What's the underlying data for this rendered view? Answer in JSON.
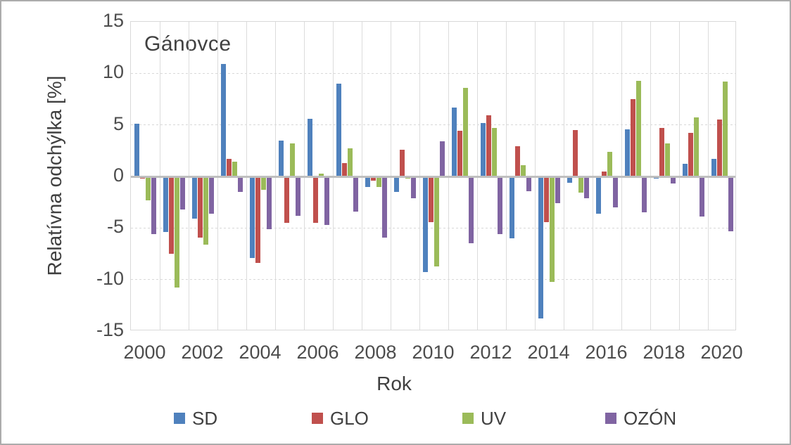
{
  "frame": {
    "background_color": "#ffffff",
    "border_color": "#acacac",
    "text_color": "#404040",
    "gridline_color": "#d9d9d9",
    "zero_axis_color": "#bfbfbf"
  },
  "chart_data": {
    "type": "bar",
    "title": "Gánovce",
    "xlabel": "Rok",
    "ylabel": "Relatívna odchýlka [%]",
    "ylim": [
      -15,
      15
    ],
    "ytick_step": 5,
    "yticks": [
      15,
      10,
      5,
      0,
      -5,
      -10,
      -15
    ],
    "ytick_labels": [
      "15",
      "10",
      "5",
      "0",
      "-5",
      "-10",
      "-15"
    ],
    "grid": true,
    "legend_position": "bottom",
    "categories": [
      2000,
      2001,
      2002,
      2003,
      2004,
      2005,
      2006,
      2007,
      2008,
      2009,
      2010,
      2011,
      2012,
      2013,
      2014,
      2015,
      2016,
      2017,
      2018,
      2019,
      2020
    ],
    "xtick_labels": [
      "2000",
      "2002",
      "2004",
      "2006",
      "2008",
      "2010",
      "2012",
      "2014",
      "2016",
      "2018",
      "2020"
    ],
    "series": [
      {
        "name": "SD",
        "color": "#4f81bd",
        "values": [
          5.1,
          -5.4,
          -4.1,
          10.9,
          -7.9,
          3.5,
          5.6,
          9.0,
          -1.0,
          -1.5,
          -9.3,
          6.7,
          5.2,
          -6.0,
          -13.8,
          -0.6,
          -3.6,
          4.6,
          -0.2,
          1.2,
          1.7
        ]
      },
      {
        "name": "GLO",
        "color": "#c0504d",
        "values": [
          -0.2,
          -7.5,
          -5.9,
          1.7,
          -8.4,
          -4.5,
          -4.5,
          1.3,
          -0.4,
          2.6,
          -4.4,
          4.4,
          5.9,
          2.9,
          -4.4,
          4.5,
          0.5,
          7.5,
          4.7,
          4.2,
          5.5
        ]
      },
      {
        "name": "UV",
        "color": "#9bbb59",
        "values": [
          -2.3,
          -10.8,
          -6.6,
          1.4,
          -1.3,
          3.2,
          0.3,
          2.7,
          -1.0,
          -0.2,
          -8.7,
          8.6,
          4.7,
          1.1,
          -10.2,
          -1.6,
          2.4,
          9.3,
          3.2,
          5.7,
          9.2
        ]
      },
      {
        "name": "OZÓN",
        "color": "#8064a2",
        "values": [
          -5.6,
          -3.2,
          -3.6,
          -1.5,
          -5.1,
          -3.8,
          -4.7,
          -3.4,
          -5.9,
          -2.1,
          3.4,
          -6.5,
          -5.6,
          -1.4,
          -2.6,
          -2.1,
          -3.0,
          -3.5,
          -0.7,
          -3.9,
          -5.3
        ]
      }
    ]
  }
}
